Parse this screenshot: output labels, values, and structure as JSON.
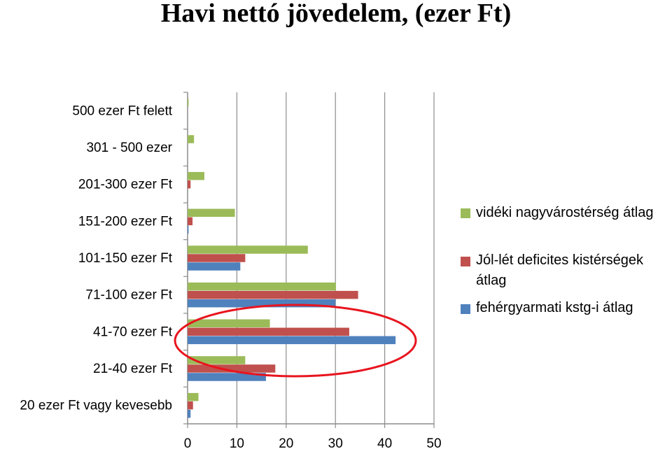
{
  "title": "Havi nettó jövedelem, (ezer Ft)",
  "chart_data": {
    "type": "bar",
    "orientation": "horizontal",
    "categories": [
      "500 ezer Ft felett",
      "301 - 500 ezer",
      "201-300 ezer Ft",
      "151-200 ezer Ft",
      "101-150 ezer Ft",
      "71-100 ezer Ft",
      "41-70 ezer Ft",
      "21-40 ezer Ft",
      "20 ezer Ft vagy kevesebb"
    ],
    "series": [
      {
        "name": "vidéki nagyvárostérség átlag",
        "color": "#9BBB59",
        "values": [
          0.2,
          1.3,
          3.4,
          9.6,
          24.4,
          30.1,
          16.7,
          11.7,
          2.2
        ]
      },
      {
        "name": "Jól-lét deficites kistérségek átlag",
        "color": "#C0504D",
        "values": [
          0,
          0,
          0.6,
          1.0,
          11.7,
          34.6,
          32.8,
          17.8,
          1.1
        ]
      },
      {
        "name": "fehérgyarmati kstg-i  átlag",
        "color": "#4F81BD",
        "values": [
          0,
          0,
          0,
          0.2,
          10.7,
          30.0,
          42.2,
          15.9,
          0.6
        ]
      }
    ],
    "xlim": [
      0,
      50
    ],
    "xticks": [
      "0",
      "10",
      "20",
      "30",
      "40",
      "50"
    ],
    "grid": "vertical",
    "legend": "right",
    "annotation": {
      "shape": "ellipse",
      "color": "#E8141E",
      "highlights": [
        "41-70 ezer Ft",
        "21-40 ezer Ft"
      ]
    }
  },
  "legend": {
    "items": [
      {
        "label": "vidéki nagyvárostérség átlag",
        "color": "#9BBB59"
      },
      {
        "label": " Jól-lét deficites kistérségek átlag",
        "color": "#C0504D"
      },
      {
        "label": "fehérgyarmati kstg-i  átlag",
        "color": "#4F81BD"
      }
    ]
  }
}
